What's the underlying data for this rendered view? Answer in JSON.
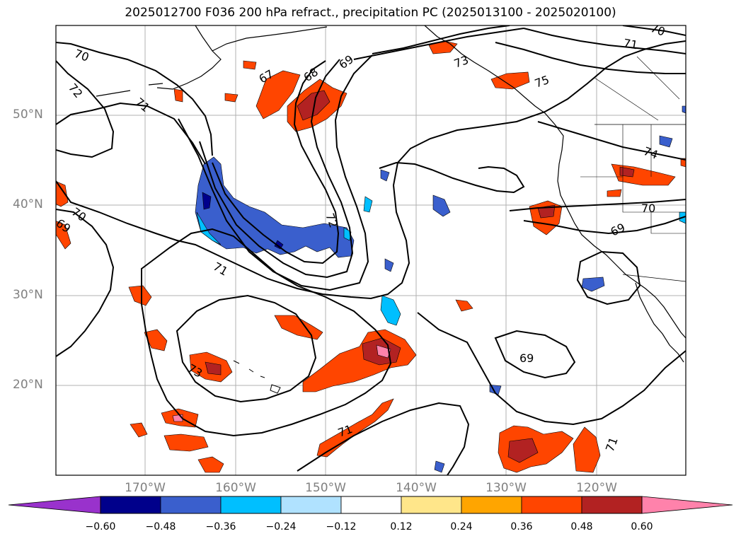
{
  "title": "2025012700 F036 200 hPa refract., precipitation PC (2025013100 - 2025020100)",
  "lat_labels": [
    "50°N",
    "40°N",
    "30°N",
    "20°N"
  ],
  "lon_labels": [
    "170°W",
    "160°W",
    "150°W",
    "140°W",
    "130°W",
    "120°W"
  ],
  "contour_labels": [
    "70",
    "72",
    "71",
    "70",
    "69",
    "67",
    "68",
    "69",
    "73",
    "71",
    "70",
    "75",
    "74",
    "70",
    "69",
    "72",
    "71",
    "73",
    "71",
    "69",
    "71"
  ],
  "colorbar": {
    "ticks": [
      "−0.60",
      "−0.48",
      "−0.36",
      "−0.24",
      "−0.12",
      "0.12",
      "0.24",
      "0.36",
      "0.48",
      "0.60"
    ],
    "colors": [
      "#9932cc",
      "#00008b",
      "#3a5fcd",
      "#00bfff",
      "#b0e2ff",
      "#ffffff",
      "#ffe68a",
      "#ffa500",
      "#ff4500",
      "#b22222",
      "#ff82ab"
    ]
  },
  "legend_colors": {
    "neg_strong": "#00008b",
    "neg_mid": "#3a5fcd",
    "neg_light": "#00bfff",
    "neg_faint": "#b0e2ff",
    "pos_faint": "#ffe68a",
    "pos_light": "#ffa500",
    "pos_mid": "#ff4500",
    "pos_strong": "#b22222",
    "pos_max": "#ff82ab"
  }
}
